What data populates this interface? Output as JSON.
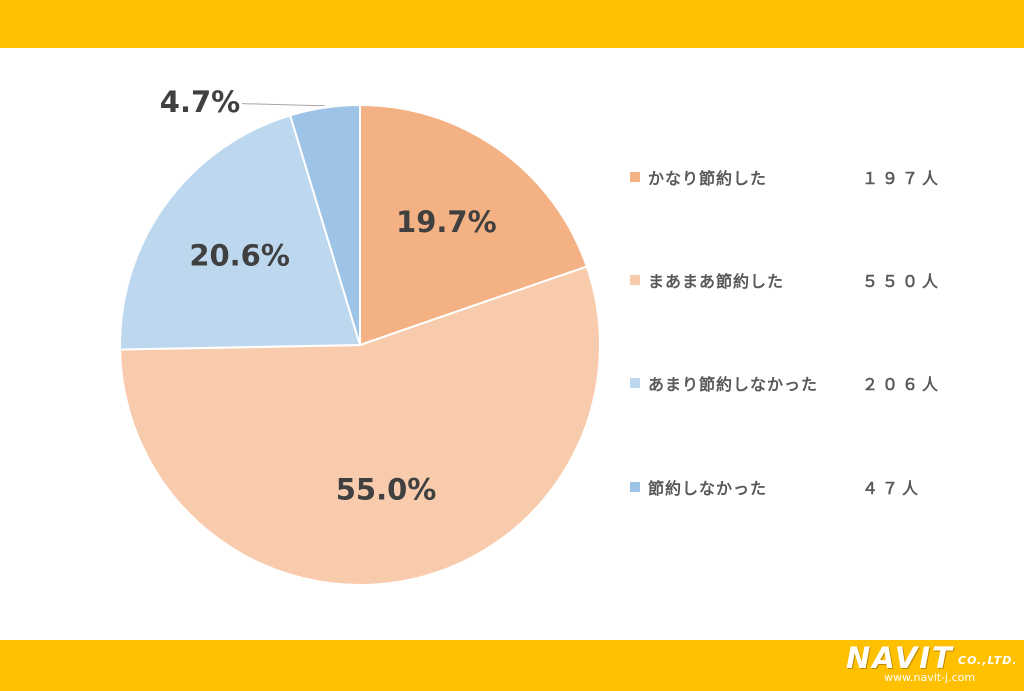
{
  "chart_data": {
    "type": "pie",
    "start_angle_deg": 0,
    "direction": "clockwise",
    "slices": [
      {
        "label": "かなり節約した",
        "count": "１９７人",
        "percent": 19.7,
        "percent_label": "19.7%",
        "color": "#F4B183"
      },
      {
        "label": "まあまあ節約した",
        "count": "５５０人",
        "percent": 55.0,
        "percent_label": "55.0%",
        "color": "#F8CBAD"
      },
      {
        "label": "あまり節約しなかった",
        "count": "２０６人",
        "percent": 20.6,
        "percent_label": "20.6%",
        "color": "#BDD7EE"
      },
      {
        "label": "節約しなかった",
        "count": "４７人",
        "percent": 4.7,
        "percent_label": "4.7%",
        "color": "#9DC3E6"
      }
    ],
    "legend_position": "right"
  },
  "theme": {
    "band_color": "#FFC000",
    "label_color": "#404040"
  },
  "logo": {
    "name": "NAVIT",
    "suffix": "CO.,LTD.",
    "url": "www.navit-j.com"
  }
}
